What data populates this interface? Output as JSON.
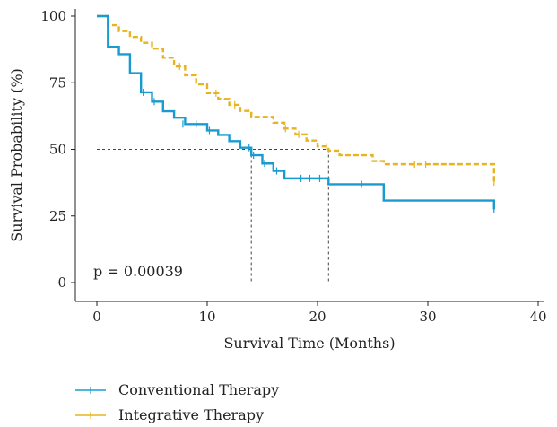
{
  "chart_data": {
    "type": "line",
    "subtype": "kaplan-meier-step",
    "xlabel": "Survival Time (Months)",
    "ylabel": "Survival Probability (%)",
    "xlim": [
      0,
      40
    ],
    "ylim": [
      0,
      100
    ],
    "x_ticks": [
      0,
      10,
      20,
      30,
      40
    ],
    "y_ticks": [
      0,
      25,
      50,
      75,
      100
    ],
    "grid": false,
    "legend_position": "bottom-left",
    "annotation": "p = 0.00039",
    "median_line": {
      "y": 50,
      "x_conventional": 14,
      "x_integrative": 21
    },
    "series": [
      {
        "name": "Conventional Therapy",
        "color": "#1a9bd0",
        "line_style": "solid",
        "steps": [
          [
            0,
            100
          ],
          [
            1,
            88.5
          ],
          [
            2,
            85.7
          ],
          [
            3,
            78.6
          ],
          [
            4,
            71.4
          ],
          [
            5,
            67.9
          ],
          [
            6,
            64.3
          ],
          [
            7,
            61.9
          ],
          [
            8,
            59.5
          ],
          [
            10,
            57.1
          ],
          [
            11,
            55.4
          ],
          [
            12,
            53.1
          ],
          [
            13,
            50.6
          ],
          [
            14,
            47.8
          ],
          [
            15,
            44.7
          ],
          [
            16,
            41.9
          ],
          [
            17,
            39.1
          ],
          [
            21,
            36.9
          ],
          [
            26,
            30.8
          ],
          [
            36,
            27.5
          ]
        ],
        "censored": [
          [
            4.2,
            71.4
          ],
          [
            5.2,
            67.9
          ],
          [
            7.8,
            59.5
          ],
          [
            9,
            59.5
          ],
          [
            10.2,
            57.1
          ],
          [
            13.8,
            50.6
          ],
          [
            14.2,
            47.8
          ],
          [
            15.2,
            44.7
          ],
          [
            16.3,
            41.9
          ],
          [
            18.5,
            39.1
          ],
          [
            19.3,
            39.1
          ],
          [
            20.2,
            39.1
          ],
          [
            24,
            36.9
          ],
          [
            36,
            27.5
          ]
        ]
      },
      {
        "name": "Integrative Therapy",
        "color": "#e8b320",
        "line_style": "dashed",
        "steps": [
          [
            0,
            100
          ],
          [
            1,
            96.6
          ],
          [
            2,
            94.4
          ],
          [
            3,
            92.2
          ],
          [
            4,
            90.0
          ],
          [
            5,
            87.8
          ],
          [
            6,
            84.4
          ],
          [
            7,
            81.1
          ],
          [
            8,
            77.8
          ],
          [
            9,
            74.4
          ],
          [
            10,
            71.1
          ],
          [
            11,
            68.9
          ],
          [
            12,
            66.7
          ],
          [
            13,
            64.4
          ],
          [
            14,
            62.2
          ],
          [
            16,
            60.0
          ],
          [
            17,
            57.8
          ],
          [
            18,
            55.6
          ],
          [
            19,
            53.3
          ],
          [
            20,
            51.1
          ],
          [
            21,
            49.5
          ],
          [
            22,
            47.8
          ],
          [
            25,
            45.6
          ],
          [
            26,
            44.4
          ],
          [
            36,
            37.7
          ]
        ],
        "censored": [
          [
            1,
            96.6
          ],
          [
            7.5,
            81.1
          ],
          [
            10.8,
            71.1
          ],
          [
            12.5,
            66.7
          ],
          [
            13.7,
            64.4
          ],
          [
            17.1,
            57.8
          ],
          [
            18.3,
            55.6
          ],
          [
            20.8,
            51.1
          ],
          [
            28.8,
            44.4
          ],
          [
            29.8,
            44.4
          ],
          [
            36,
            37.7
          ]
        ]
      }
    ]
  }
}
